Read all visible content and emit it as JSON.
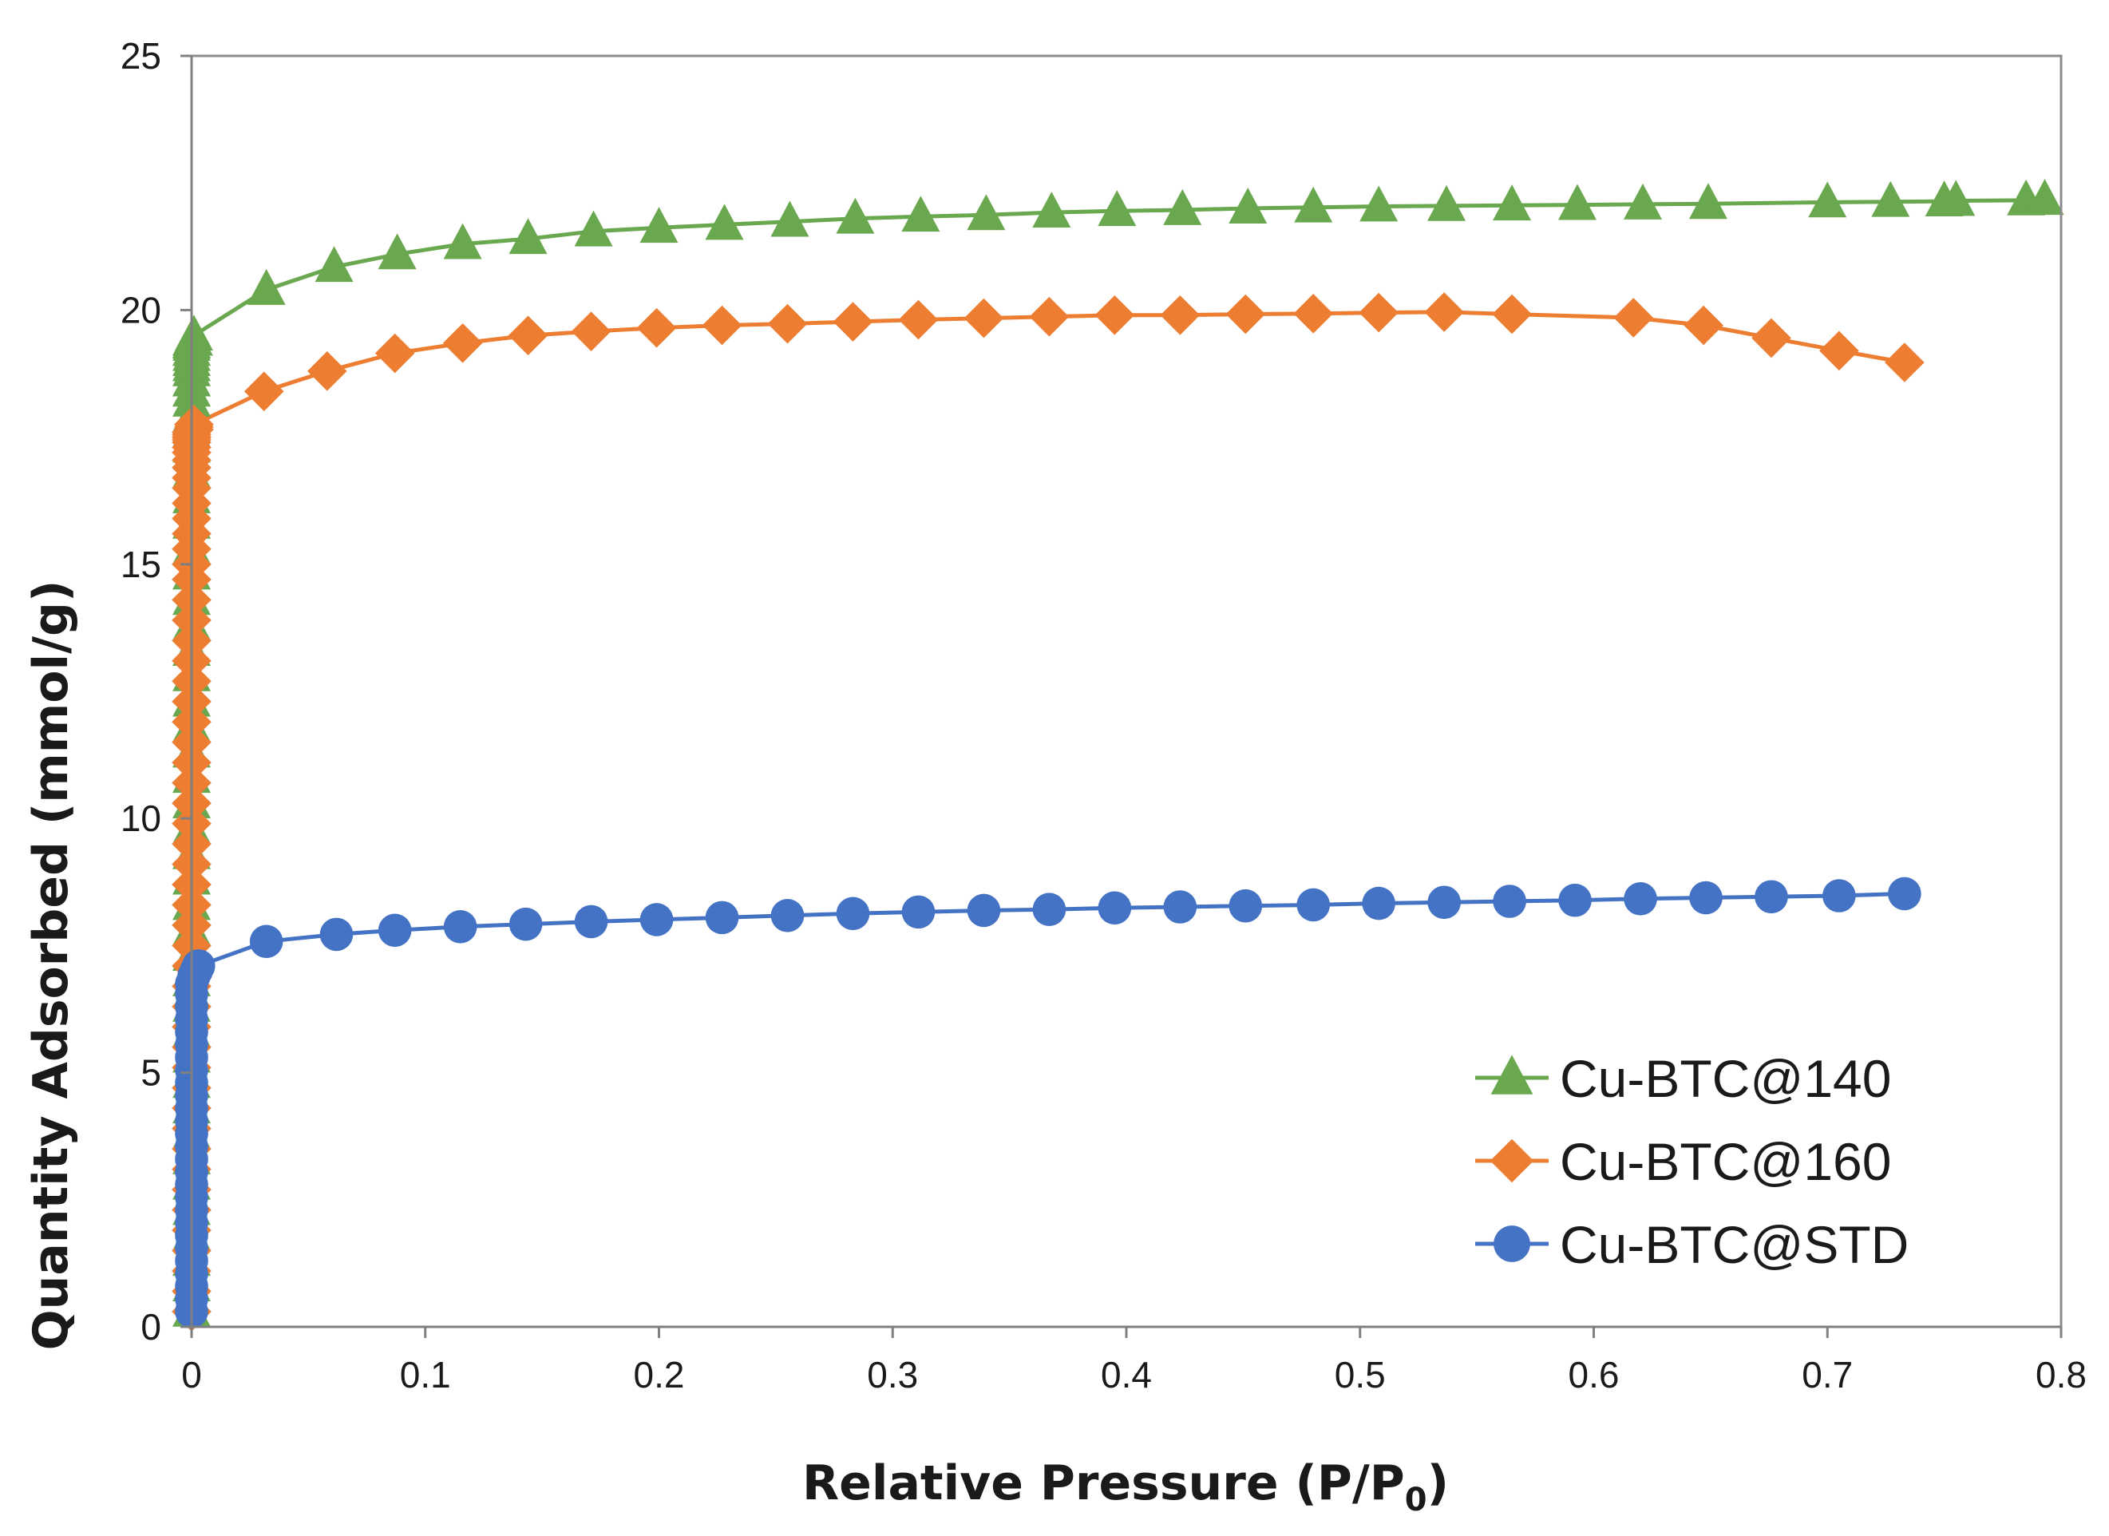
{
  "chart_data": {
    "type": "scatter",
    "title": "",
    "xlabel_main": "Relative Pressure (P/P",
    "xlabel_sub": "0",
    "xlabel_end": ")",
    "ylabel": "Quantity Adsorbed (mmol/g)",
    "xlim": [
      0,
      0.8
    ],
    "ylim": [
      0,
      25
    ],
    "xticks": [
      0,
      0.1,
      0.2,
      0.3,
      0.4,
      0.5,
      0.6,
      0.7,
      0.8
    ],
    "xtick_labels": [
      "0",
      "0.1",
      "0.2",
      "0.3",
      "0.4",
      "0.5",
      "0.6",
      "0.7",
      "0.8"
    ],
    "yticks": [
      0,
      5,
      10,
      15,
      20,
      25
    ],
    "ytick_labels": [
      "0",
      "5",
      "10",
      "15",
      "20",
      "25"
    ],
    "grid": false,
    "legend_position": "bottom-right",
    "series": [
      {
        "name": "Cu-BTC@140",
        "color": "#6aa84f",
        "marker": "triangle",
        "x": [
          0.0,
          0.0,
          0.0,
          0.0,
          0.0,
          0.0,
          0.0,
          0.0,
          0.0,
          0.0,
          0.0,
          0.0,
          0.0,
          0.0,
          0.0,
          0.0,
          0.0,
          0.0,
          0.0,
          0.0,
          0.0,
          0.0,
          0.0,
          0.0,
          0.0,
          0.0,
          0.0,
          0.0,
          0.0,
          0.0,
          0.0,
          0.0,
          0.0,
          0.0,
          0.0,
          0.0,
          0.0,
          0.0,
          0.0,
          0.0,
          0.0,
          0.0,
          0.0,
          0.0,
          0.0,
          0.0,
          0.0,
          0.0,
          0.0,
          0.0,
          0.0,
          0.0,
          0.0,
          0.001,
          0.001,
          0.032,
          0.061,
          0.088,
          0.116,
          0.144,
          0.172,
          0.2,
          0.228,
          0.256,
          0.284,
          0.312,
          0.34,
          0.368,
          0.396,
          0.424,
          0.452,
          0.48,
          0.508,
          0.537,
          0.565,
          0.593,
          0.621,
          0.649,
          0.7,
          0.727,
          0.75,
          0.755,
          0.785,
          0.793
        ],
        "y": [
          0.3,
          0.8,
          1.3,
          1.8,
          2.3,
          2.8,
          3.3,
          3.8,
          4.3,
          4.8,
          5.3,
          5.8,
          6.3,
          6.8,
          7.3,
          7.8,
          8.3,
          8.8,
          9.3,
          9.8,
          10.3,
          10.8,
          11.3,
          11.8,
          12.3,
          12.8,
          13.3,
          13.8,
          14.3,
          14.8,
          15.3,
          15.8,
          16.3,
          16.8,
          17.3,
          17.6,
          17.9,
          18.2,
          18.4,
          18.6,
          18.8,
          19.0,
          19.2,
          19.35,
          18.6,
          18.9,
          19.1,
          19.2,
          19.3,
          19.35,
          19.35,
          19.4,
          19.4,
          19.4,
          19.5,
          20.4,
          20.85,
          21.1,
          21.3,
          21.4,
          21.55,
          21.62,
          21.68,
          21.74,
          21.8,
          21.84,
          21.87,
          21.92,
          21.95,
          21.97,
          22.0,
          22.02,
          22.04,
          22.05,
          22.06,
          22.07,
          22.08,
          22.09,
          22.12,
          22.13,
          22.14,
          22.15,
          22.16,
          22.17
        ]
      },
      {
        "name": "Cu-BTC@160",
        "color": "#ed7d31",
        "marker": "diamond",
        "x": [
          0.0,
          0.0,
          0.0,
          0.0,
          0.0,
          0.0,
          0.0,
          0.0,
          0.0,
          0.0,
          0.0,
          0.0,
          0.0,
          0.0,
          0.0,
          0.0,
          0.0,
          0.0,
          0.0,
          0.0,
          0.0,
          0.0,
          0.0,
          0.0,
          0.0,
          0.0,
          0.0,
          0.0,
          0.0,
          0.0,
          0.0,
          0.0,
          0.0,
          0.0,
          0.0,
          0.0,
          0.0,
          0.0,
          0.0,
          0.0,
          0.0,
          0.0,
          0.0,
          0.0,
          0.0,
          0.0,
          0.0,
          0.0,
          0.0,
          0.0,
          0.0,
          0.0,
          0.0,
          0.001,
          0.001,
          0.001,
          0.031,
          0.058,
          0.087,
          0.116,
          0.144,
          0.171,
          0.199,
          0.227,
          0.255,
          0.283,
          0.311,
          0.339,
          0.367,
          0.395,
          0.423,
          0.451,
          0.48,
          0.508,
          0.536,
          0.565,
          0.617,
          0.647,
          0.676,
          0.705,
          0.733
        ],
        "y": [
          0.3,
          0.7,
          1.1,
          1.5,
          1.9,
          2.3,
          2.7,
          3.1,
          3.5,
          3.9,
          4.3,
          4.7,
          5.1,
          5.5,
          5.9,
          6.3,
          6.7,
          7.1,
          7.5,
          7.9,
          8.3,
          8.7,
          9.1,
          9.5,
          9.9,
          10.3,
          10.7,
          11.1,
          11.5,
          11.9,
          12.3,
          12.7,
          13.1,
          13.5,
          13.9,
          14.3,
          14.7,
          15.0,
          15.3,
          15.6,
          15.9,
          16.2,
          16.5,
          16.7,
          16.9,
          17.05,
          17.2,
          17.3,
          17.4,
          17.45,
          17.5,
          17.55,
          17.6,
          17.65,
          17.7,
          17.75,
          18.4,
          18.8,
          19.15,
          19.35,
          19.5,
          19.58,
          19.65,
          19.7,
          19.73,
          19.77,
          19.81,
          19.84,
          19.87,
          19.9,
          19.9,
          19.92,
          19.93,
          19.95,
          19.96,
          19.92,
          19.85,
          19.7,
          19.45,
          19.2,
          18.97
        ]
      },
      {
        "name": "Cu-BTC@STD",
        "color": "#4472c4",
        "marker": "circle",
        "x": [
          0.0,
          0.0,
          0.0,
          0.0,
          0.0,
          0.0,
          0.0,
          0.0,
          0.0,
          0.0,
          0.0,
          0.0,
          0.0,
          0.0,
          0.0,
          0.0,
          0.0,
          0.0,
          0.0,
          0.0,
          0.0,
          0.0,
          0.0,
          0.0,
          0.0,
          0.0,
          0.0,
          0.001,
          0.002,
          0.003,
          0.032,
          0.062,
          0.087,
          0.115,
          0.143,
          0.171,
          0.199,
          0.227,
          0.255,
          0.283,
          0.311,
          0.339,
          0.367,
          0.395,
          0.423,
          0.451,
          0.48,
          0.508,
          0.536,
          0.564,
          0.592,
          0.62,
          0.648,
          0.676,
          0.705,
          0.733
        ],
        "y": [
          0.3,
          0.55,
          0.8,
          1.05,
          1.3,
          1.55,
          1.8,
          2.05,
          2.3,
          2.55,
          2.8,
          3.05,
          3.3,
          3.55,
          3.8,
          4.05,
          4.3,
          4.55,
          4.8,
          5.05,
          5.3,
          5.55,
          5.8,
          6.05,
          6.3,
          6.55,
          6.75,
          6.9,
          7.0,
          7.1,
          7.58,
          7.72,
          7.8,
          7.87,
          7.92,
          7.97,
          8.01,
          8.05,
          8.09,
          8.13,
          8.16,
          8.19,
          8.21,
          8.24,
          8.26,
          8.28,
          8.3,
          8.33,
          8.35,
          8.37,
          8.39,
          8.42,
          8.44,
          8.46,
          8.48,
          8.52
        ]
      }
    ]
  }
}
